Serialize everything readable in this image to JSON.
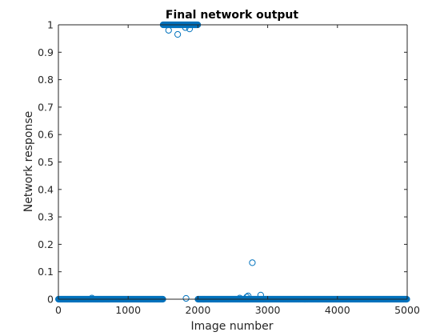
{
  "chart_data": {
    "type": "scatter",
    "title": "Final network output",
    "xlabel": "Image number",
    "ylabel": "Network response",
    "xlim": [
      0,
      5000
    ],
    "ylim": [
      0,
      1
    ],
    "xticks": [
      0,
      1000,
      2000,
      3000,
      4000,
      5000
    ],
    "xtick_labels": [
      "0",
      "1000",
      "2000",
      "3000",
      "4000",
      "5000"
    ],
    "yticks": [
      0,
      0.1,
      0.2,
      0.3,
      0.4,
      0.5,
      0.6,
      0.7,
      0.8,
      0.9,
      1
    ],
    "ytick_labels": [
      "0",
      "0.1",
      "0.2",
      "0.3",
      "0.4",
      "0.5",
      "0.6",
      "0.7",
      "0.8",
      "0.9",
      "1"
    ],
    "grid": false,
    "marker": "open-circle",
    "marker_color": "#0072BD",
    "series": [
      {
        "dense_runs": [
          {
            "x_start": 1,
            "x_end": 1500,
            "y": 0
          },
          {
            "x_start": 1501,
            "x_end": 2000,
            "y": 1
          },
          {
            "x_start": 2001,
            "x_end": 5000,
            "y": 0
          }
        ],
        "outliers": [
          {
            "x": 480,
            "y": 0.004
          },
          {
            "x": 1580,
            "y": 0.98
          },
          {
            "x": 1710,
            "y": 0.965
          },
          {
            "x": 1820,
            "y": 0.99
          },
          {
            "x": 1880,
            "y": 0.985
          },
          {
            "x": 1830,
            "y": 0.003
          },
          {
            "x": 2600,
            "y": 0.004
          },
          {
            "x": 2700,
            "y": 0.008
          },
          {
            "x": 2720,
            "y": 0.012
          },
          {
            "x": 2780,
            "y": 0.133
          },
          {
            "x": 2900,
            "y": 0.015
          }
        ]
      }
    ]
  }
}
